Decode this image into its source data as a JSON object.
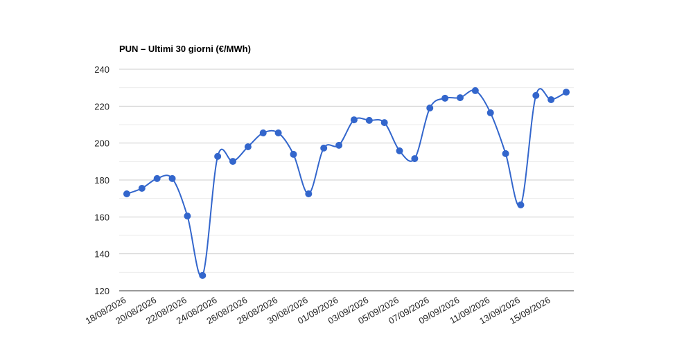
{
  "chart_data": {
    "type": "line",
    "title": "PUN – Ultimi 30 giorni (€/MWh)",
    "categories": [
      "18/08/2026",
      null,
      "20/08/2026",
      null,
      "22/08/2026",
      null,
      "24/08/2026",
      null,
      "26/08/2026",
      null,
      "28/08/2026",
      null,
      "30/08/2026",
      null,
      "01/09/2026",
      null,
      "03/09/2026",
      null,
      "05/09/2026",
      null,
      "07/09/2026",
      null,
      "09/09/2026",
      null,
      "11/09/2026",
      null,
      "13/09/2026",
      null,
      "15/09/2026",
      null
    ],
    "series": [
      {
        "color": "#3366cc",
        "values": [
          172.5,
          175.5,
          180.8,
          180.8,
          160.5,
          128.3,
          192.8,
          190.1,
          198.0,
          205.5,
          205.5,
          193.9,
          172.5,
          197.3,
          198.8,
          212.6,
          212.3,
          211.1,
          195.8,
          191.6,
          219.0,
          224.3,
          224.6,
          228.4,
          216.4,
          194.3,
          166.5,
          225.8,
          223.5,
          227.6
        ]
      }
    ],
    "ylim": [
      120,
      240
    ],
    "yticks": [
      120,
      140,
      160,
      180,
      200,
      220,
      240
    ],
    "grid": true,
    "minor_grid": true
  }
}
